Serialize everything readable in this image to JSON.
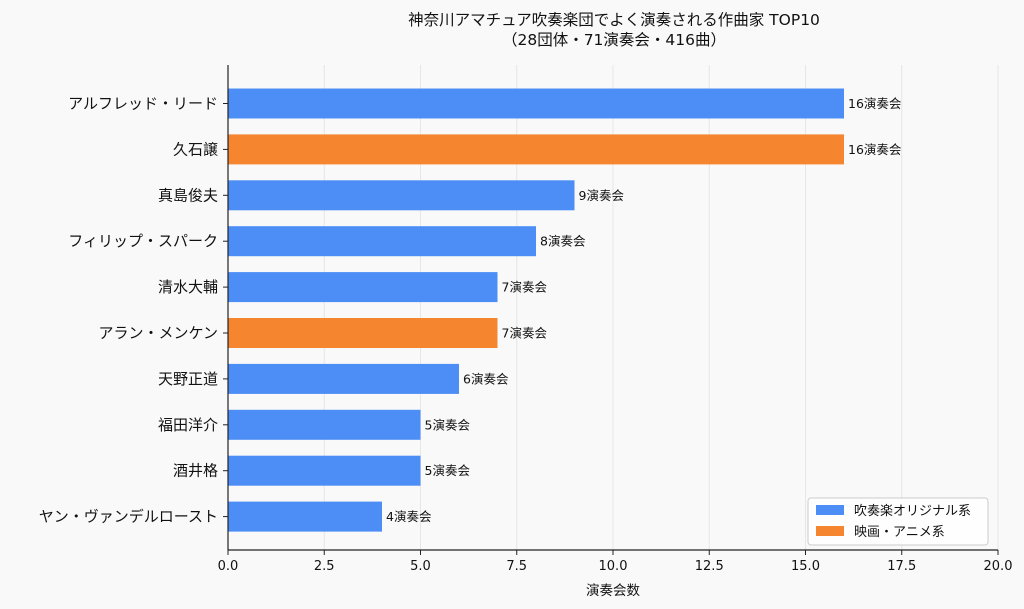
{
  "chart_data": {
    "type": "bar",
    "orientation": "horizontal",
    "title": "神奈川アマチュア吹奏楽団でよく演奏される作曲家 TOP10",
    "subtitle": "（28団体・71演奏会・416曲）",
    "xlabel": "演奏会数",
    "ylabel": "",
    "xlim": [
      0,
      20
    ],
    "xticks": [
      "0.0",
      "2.5",
      "5.0",
      "7.5",
      "10.0",
      "12.5",
      "15.0",
      "17.5",
      "20.0"
    ],
    "xtick_values": [
      0,
      2.5,
      5,
      7.5,
      10,
      12.5,
      15,
      17.5,
      20
    ],
    "grid": "vertical",
    "categories": [
      "アルフレッド・リード",
      "久石譲",
      "真島俊夫",
      "フィリップ・スパーク",
      "清水大輔",
      "アラン・メンケン",
      "天野正道",
      "福田洋介",
      "酒井格",
      "ヤン・ヴァンデルロースト"
    ],
    "values": [
      16,
      16,
      9,
      8,
      7,
      7,
      6,
      5,
      5,
      4
    ],
    "groups": [
      "吹奏楽オリジナル系",
      "映画・アニメ系",
      "吹奏楽オリジナル系",
      "吹奏楽オリジナル系",
      "吹奏楽オリジナル系",
      "映画・アニメ系",
      "吹奏楽オリジナル系",
      "吹奏楽オリジナル系",
      "吹奏楽オリジナル系",
      "吹奏楽オリジナル系"
    ],
    "data_labels": [
      "16演奏会",
      "16演奏会",
      "9演奏会",
      "8演奏会",
      "7演奏会",
      "7演奏会",
      "6演奏会",
      "5演奏会",
      "5演奏会",
      "4演奏会"
    ],
    "legend": {
      "placement": "bottom-right",
      "entries": [
        {
          "name": "吹奏楽オリジナル系",
          "color": "#4c8ef5"
        },
        {
          "name": "映画・アニメ系",
          "color": "#f6852f"
        }
      ]
    }
  }
}
